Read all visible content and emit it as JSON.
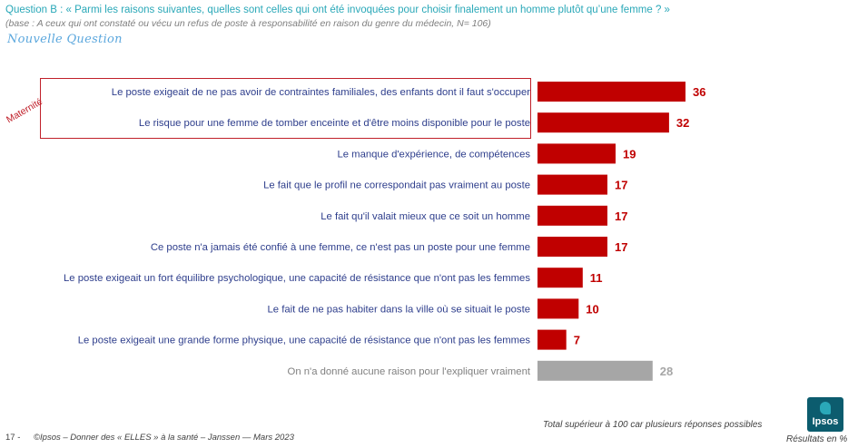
{
  "header": {
    "question": "Question B : « Parmi les raisons suivantes, quelles sont celles qui ont été invoquées pour choisir finalement un homme plutôt qu’une femme ? »",
    "base": "(base : A ceux qui ont constaté ou vécu un refus de poste à responsabilité en raison du genre du médecin, N= 106)",
    "new_question": "Nouvelle Question"
  },
  "highlight": {
    "label": "Maternité"
  },
  "chart_data": {
    "type": "bar",
    "orientation": "horizontal",
    "categories": [
      "Le poste exigeait de ne pas avoir de contraintes familiales, des enfants dont il faut s'occuper",
      "Le risque pour une femme de tomber enceinte et d'être moins disponible pour le poste",
      "Le manque d'expérience, de compétences",
      "Le fait que le profil ne correspondait pas vraiment au poste",
      "Le fait qu'il valait mieux que ce soit un homme",
      "Ce poste n'a jamais été confié à une femme, ce n'est pas un poste pour une femme",
      "Le poste exigeait un fort équilibre psychologique, une capacité de résistance que n'ont pas les femmes",
      "Le fait de ne pas habiter dans la ville où se situait le poste",
      "Le poste exigeait une grande forme physique, une capacité de résistance que n'ont pas les femmes",
      "On n'a donné aucune raison pour l'expliquer vraiment"
    ],
    "values": [
      36,
      32,
      19,
      17,
      17,
      17,
      11,
      10,
      7,
      28
    ],
    "value_labels": [
      "36",
      "32",
      "19",
      "17",
      "17",
      "17",
      "11",
      "10",
      "7",
      "28"
    ],
    "highlighted_group": [
      0,
      1
    ],
    "xlim": [
      0,
      36
    ],
    "colors": {
      "main": "#c00000",
      "other": "#a6a6a6",
      "label_main": "#2e3e8c",
      "label_other": "#808080"
    }
  },
  "footer": {
    "page": "17 -",
    "source": "©Ipsos – Donner des « ELLES » à la santé – Janssen — Mars 2023",
    "note": "Total supérieur à 100 car plusieurs réponses possibles",
    "results": "Résultats en %",
    "logo": "Ipsos"
  }
}
